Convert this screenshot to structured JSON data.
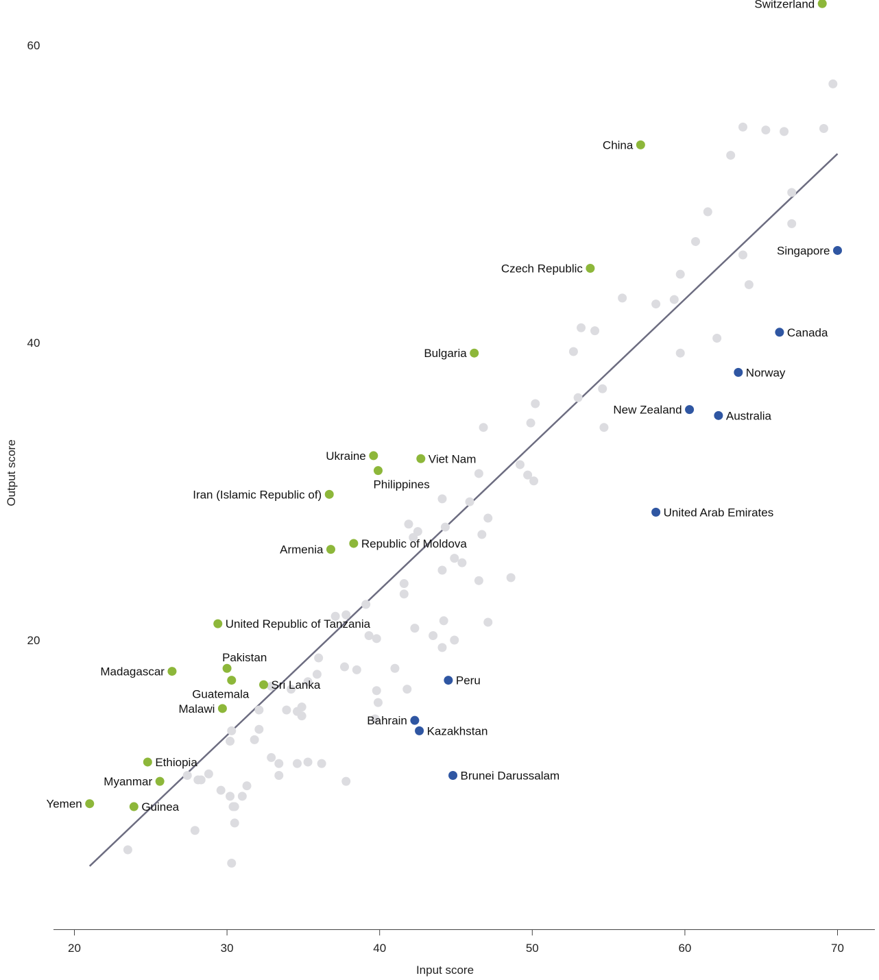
{
  "chart_data": {
    "type": "scatter",
    "title": "",
    "xlabel": "Input score",
    "ylabel": "Output score",
    "xlim": [
      18.7,
      71.3
    ],
    "ylim": [
      1.2,
      63.2
    ],
    "x_ticks": [
      20,
      30,
      40,
      50,
      60,
      70
    ],
    "y_ticks": [
      20,
      40,
      60
    ],
    "grid": false,
    "colors": {
      "other": "#dcdce0",
      "above_trend": "#8db73a",
      "below_trend": "#2f56a2",
      "trendline": "#6c6c80",
      "axis": "#444444"
    },
    "trendline": {
      "x": [
        21.0,
        70.0
      ],
      "y": [
        4.8,
        52.7
      ]
    },
    "highlighted": [
      {
        "label": "Switzerland",
        "x": 69.0,
        "y": 62.8,
        "group": "above_trend",
        "label_side": "left"
      },
      {
        "label": "China",
        "x": 57.1,
        "y": 53.3,
        "group": "above_trend",
        "label_side": "left"
      },
      {
        "label": "Czech Republic",
        "x": 53.8,
        "y": 45.0,
        "group": "above_trend",
        "label_side": "left"
      },
      {
        "label": "Bulgaria",
        "x": 46.2,
        "y": 39.3,
        "group": "above_trend",
        "label_side": "left"
      },
      {
        "label": "Ukraine",
        "x": 39.6,
        "y": 32.4,
        "group": "above_trend",
        "label_side": "left"
      },
      {
        "label": "Viet Nam",
        "x": 42.7,
        "y": 32.2,
        "group": "above_trend",
        "label_side": "right"
      },
      {
        "label": "Philippines",
        "x": 39.9,
        "y": 31.4,
        "group": "above_trend",
        "label_side": "below"
      },
      {
        "label": "Iran (Islamic Republic of)",
        "x": 36.7,
        "y": 29.8,
        "group": "above_trend",
        "label_side": "left"
      },
      {
        "label": "Republic of Moldova",
        "x": 38.3,
        "y": 26.5,
        "group": "above_trend",
        "label_side": "right"
      },
      {
        "label": "Armenia",
        "x": 36.8,
        "y": 26.1,
        "group": "above_trend",
        "label_side": "left"
      },
      {
        "label": "United Republic of Tanzania",
        "x": 29.4,
        "y": 21.1,
        "group": "above_trend",
        "label_side": "right"
      },
      {
        "label": "Pakistan",
        "x": 30.0,
        "y": 18.1,
        "group": "above_trend",
        "label_side": "above"
      },
      {
        "label": "Madagascar",
        "x": 26.4,
        "y": 17.9,
        "group": "above_trend",
        "label_side": "left"
      },
      {
        "label": "Guatemala",
        "x": 30.3,
        "y": 17.3,
        "group": "above_trend",
        "label_side": "below"
      },
      {
        "label": "Sri Lanka",
        "x": 32.4,
        "y": 17.0,
        "group": "above_trend",
        "label_side": "right"
      },
      {
        "label": "Malawi",
        "x": 29.7,
        "y": 15.4,
        "group": "above_trend",
        "label_side": "left"
      },
      {
        "label": "Ethiopia",
        "x": 24.8,
        "y": 11.8,
        "group": "above_trend",
        "label_side": "right"
      },
      {
        "label": "Myanmar",
        "x": 25.6,
        "y": 10.5,
        "group": "above_trend",
        "label_side": "left"
      },
      {
        "label": "Yemen",
        "x": 21.0,
        "y": 9.0,
        "group": "above_trend",
        "label_side": "left"
      },
      {
        "label": "Guinea",
        "x": 23.9,
        "y": 8.8,
        "group": "above_trend",
        "label_side": "right"
      },
      {
        "label": "Singapore",
        "x": 70.0,
        "y": 46.2,
        "group": "below_trend",
        "label_side": "left"
      },
      {
        "label": "Canada",
        "x": 66.2,
        "y": 40.7,
        "group": "below_trend",
        "label_side": "right"
      },
      {
        "label": "Norway",
        "x": 63.5,
        "y": 38.0,
        "group": "below_trend",
        "label_side": "right"
      },
      {
        "label": "New Zealand",
        "x": 60.3,
        "y": 35.5,
        "group": "below_trend",
        "label_side": "left"
      },
      {
        "label": "Australia",
        "x": 62.2,
        "y": 35.1,
        "group": "below_trend",
        "label_side": "right"
      },
      {
        "label": "United Arab Emirates",
        "x": 58.1,
        "y": 28.6,
        "group": "below_trend",
        "label_side": "right"
      },
      {
        "label": "Peru",
        "x": 44.5,
        "y": 17.3,
        "group": "below_trend",
        "label_side": "right"
      },
      {
        "label": "Bahrain",
        "x": 42.3,
        "y": 14.6,
        "group": "below_trend",
        "label_side": "left"
      },
      {
        "label": "Kazakhstan",
        "x": 42.6,
        "y": 13.9,
        "group": "below_trend",
        "label_side": "right"
      },
      {
        "label": "Brunei Darussalam",
        "x": 44.8,
        "y": 10.9,
        "group": "below_trend",
        "label_side": "right"
      }
    ],
    "other_points": [
      [
        69.7,
        57.4
      ],
      [
        63.8,
        54.5
      ],
      [
        65.3,
        54.3
      ],
      [
        66.5,
        54.2
      ],
      [
        69.1,
        54.4
      ],
      [
        63.0,
        52.6
      ],
      [
        67.0,
        50.1
      ],
      [
        61.5,
        48.8
      ],
      [
        67.0,
        48.0
      ],
      [
        60.7,
        46.8
      ],
      [
        63.8,
        45.9
      ],
      [
        59.7,
        44.6
      ],
      [
        64.2,
        43.9
      ],
      [
        55.9,
        43.0
      ],
      [
        58.1,
        42.6
      ],
      [
        59.3,
        42.9
      ],
      [
        53.2,
        41.0
      ],
      [
        54.1,
        40.8
      ],
      [
        62.1,
        40.3
      ],
      [
        52.7,
        39.4
      ],
      [
        59.7,
        39.3
      ],
      [
        54.6,
        36.9
      ],
      [
        53.0,
        36.3
      ],
      [
        50.2,
        35.9
      ],
      [
        49.9,
        34.6
      ],
      [
        46.8,
        34.3
      ],
      [
        54.7,
        34.3
      ],
      [
        49.2,
        31.8
      ],
      [
        46.5,
        31.2
      ],
      [
        49.7,
        31.1
      ],
      [
        50.1,
        30.7
      ],
      [
        44.1,
        29.5
      ],
      [
        45.9,
        29.3
      ],
      [
        47.1,
        28.2
      ],
      [
        41.9,
        27.8
      ],
      [
        42.5,
        27.3
      ],
      [
        44.3,
        27.6
      ],
      [
        42.2,
        26.9
      ],
      [
        46.7,
        27.1
      ],
      [
        44.9,
        25.5
      ],
      [
        45.4,
        25.2
      ],
      [
        44.1,
        24.7
      ],
      [
        46.5,
        24.0
      ],
      [
        48.6,
        24.2
      ],
      [
        41.6,
        23.8
      ],
      [
        41.6,
        23.1
      ],
      [
        39.1,
        22.4
      ],
      [
        37.1,
        21.6
      ],
      [
        37.8,
        21.7
      ],
      [
        47.1,
        21.2
      ],
      [
        44.2,
        21.3
      ],
      [
        42.3,
        20.8
      ],
      [
        39.3,
        20.3
      ],
      [
        39.8,
        20.1
      ],
      [
        43.5,
        20.3
      ],
      [
        44.9,
        20.0
      ],
      [
        44.1,
        19.5
      ],
      [
        36.0,
        18.8
      ],
      [
        37.7,
        18.2
      ],
      [
        38.5,
        18.0
      ],
      [
        41.0,
        18.1
      ],
      [
        35.9,
        17.7
      ],
      [
        35.3,
        17.2
      ],
      [
        32.9,
        16.9
      ],
      [
        34.2,
        16.7
      ],
      [
        41.8,
        16.7
      ],
      [
        39.8,
        16.6
      ],
      [
        39.9,
        15.8
      ],
      [
        32.1,
        15.3
      ],
      [
        33.9,
        15.3
      ],
      [
        34.6,
        15.2
      ],
      [
        34.9,
        15.5
      ],
      [
        34.9,
        14.9
      ],
      [
        39.7,
        14.7
      ],
      [
        30.3,
        13.9
      ],
      [
        32.1,
        14.0
      ],
      [
        30.2,
        13.2
      ],
      [
        31.8,
        13.3
      ],
      [
        32.9,
        12.1
      ],
      [
        33.4,
        11.7
      ],
      [
        34.6,
        11.7
      ],
      [
        35.3,
        11.8
      ],
      [
        36.2,
        11.7
      ],
      [
        28.8,
        11.0
      ],
      [
        27.4,
        10.9
      ],
      [
        28.1,
        10.6
      ],
      [
        28.3,
        10.6
      ],
      [
        33.4,
        10.9
      ],
      [
        37.8,
        10.5
      ],
      [
        31.3,
        10.2
      ],
      [
        29.6,
        9.9
      ],
      [
        30.2,
        9.5
      ],
      [
        31.0,
        9.5
      ],
      [
        30.4,
        8.8
      ],
      [
        30.5,
        8.8
      ],
      [
        30.5,
        7.7
      ],
      [
        27.9,
        7.2
      ],
      [
        23.5,
        5.9
      ],
      [
        30.3,
        5.0
      ]
    ]
  }
}
